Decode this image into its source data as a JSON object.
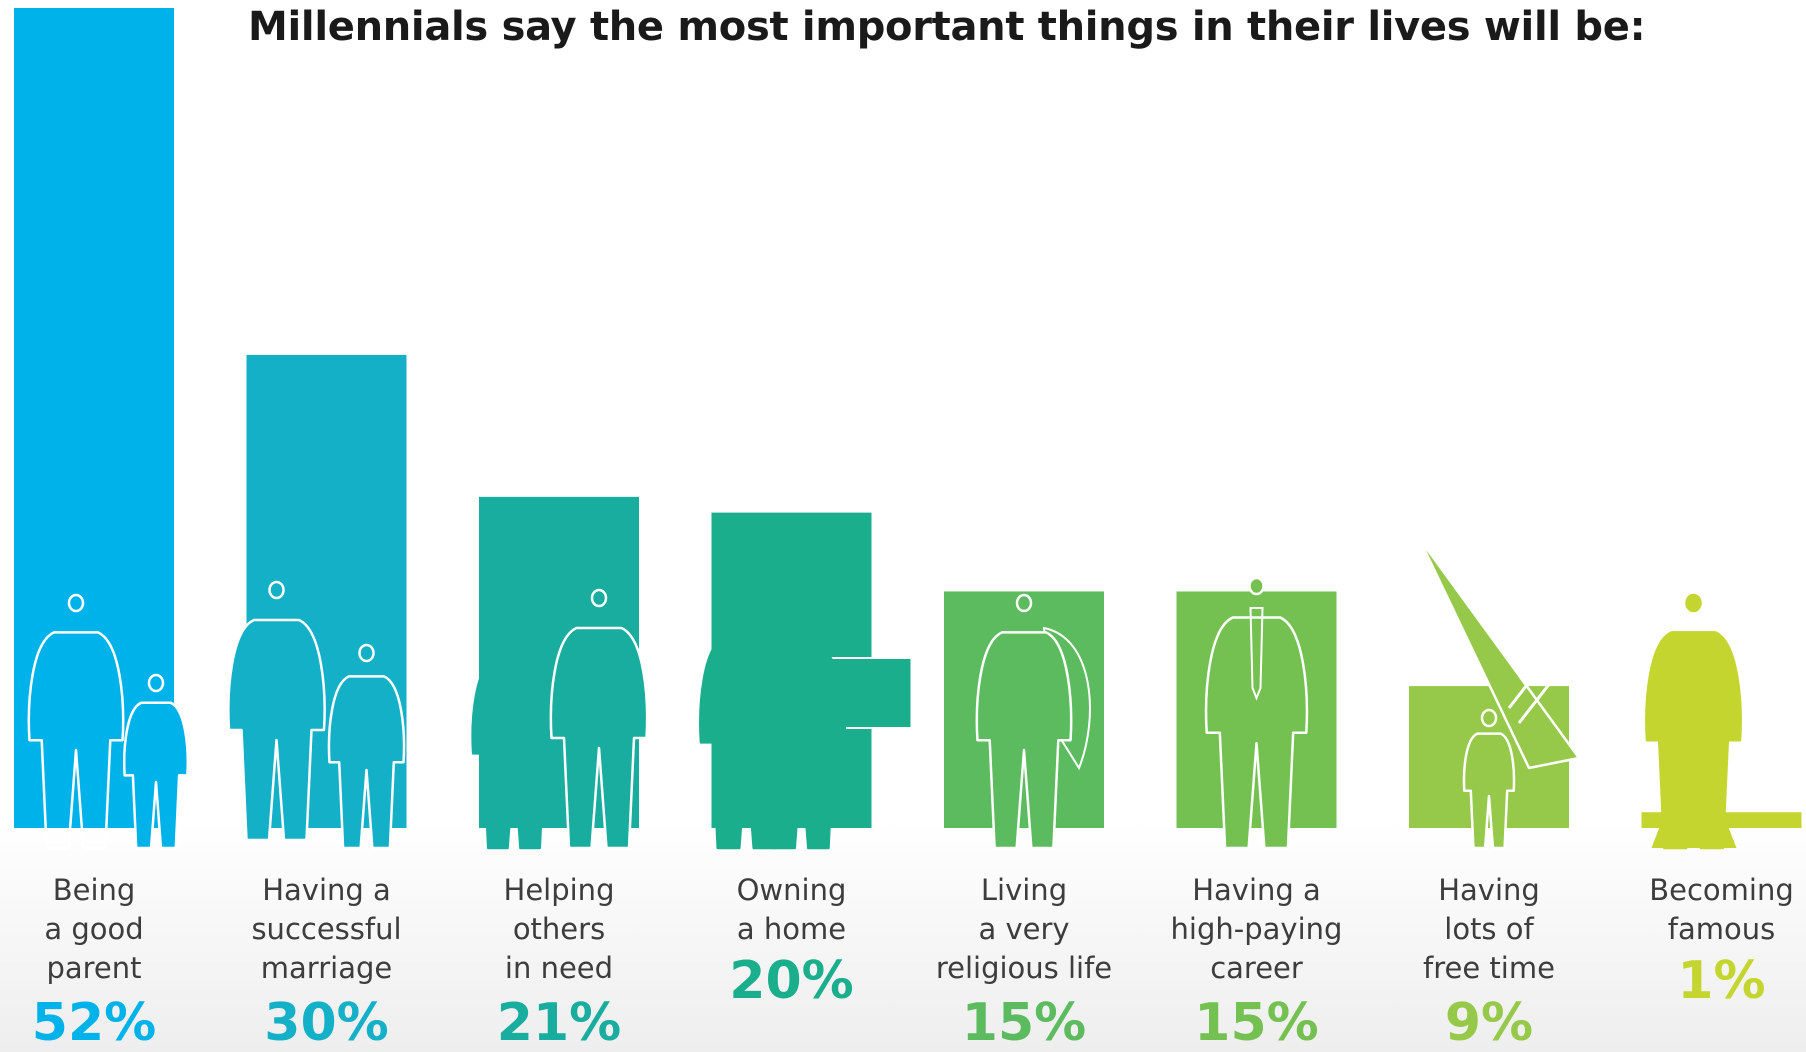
{
  "chart_data": {
    "type": "bar",
    "title": "Millennials say the most important things in their lives will be:",
    "categories": [
      [
        "Being",
        "a good",
        "parent"
      ],
      [
        "Having a",
        "successful",
        "marriage"
      ],
      [
        "Helping",
        "others",
        "in need"
      ],
      [
        "Owning",
        "a home"
      ],
      [
        "Living",
        "a very",
        "religious life"
      ],
      [
        "Having a",
        "high-paying",
        "career"
      ],
      [
        "Having",
        "lots of",
        "free time"
      ],
      [
        "Becoming",
        "famous"
      ]
    ],
    "values": [
      52,
      30,
      21,
      20,
      15,
      15,
      9,
      1
    ],
    "value_labels": [
      "52%",
      "30%",
      "21%",
      "20%",
      "15%",
      "15%",
      "9%",
      "1%"
    ],
    "ylim": [
      0,
      52
    ],
    "grid": false,
    "legend": "none",
    "colors": [
      "#00b2ea",
      "#13b0c8",
      "#18ad9f",
      "#1bae8c",
      "#5cbb5e",
      "#74c152",
      "#96c94a",
      "#c5d530"
    ],
    "icons": [
      "parent-and-child-silhouette-icon",
      "kneeling-proposal-couple-silhouette-icon",
      "people-helping-silhouette-icon",
      "couple-with-house-silhouette-icon",
      "praying-person-with-angel-wings-silhouette-icon",
      "businessman-silhouette-icon",
      "windsurfer-silhouette-icon",
      "celebrity-in-gown-silhouette-icon"
    ]
  }
}
